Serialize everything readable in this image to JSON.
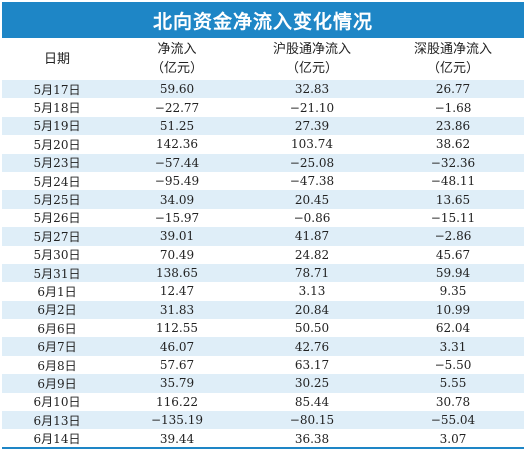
{
  "title": "北向资金净流入变化情况",
  "headers": [
    {
      "line1": "日期",
      "line2": ""
    },
    {
      "line1": "净流入",
      "line2": "（亿元）"
    },
    {
      "line1": "沪股通净流入",
      "line2": "（亿元）"
    },
    {
      "line1": "深股通净流入",
      "line2": "（亿元）"
    }
  ],
  "rows": [
    [
      "5月17日",
      "59.60",
      "32.83",
      "26.77"
    ],
    [
      "5月18日",
      "−22.77",
      "−21.10",
      "−1.68"
    ],
    [
      "5月19日",
      "51.25",
      "27.39",
      "23.86"
    ],
    [
      "5月20日",
      "142.36",
      "103.74",
      "38.62"
    ],
    [
      "5月23日",
      "−57.44",
      "−25.08",
      "−32.36"
    ],
    [
      "5月24日",
      "−95.49",
      "−47.38",
      "−48.11"
    ],
    [
      "5月25日",
      "34.09",
      "20.45",
      "13.65"
    ],
    [
      "5月26日",
      "−15.97",
      "−0.86",
      "−15.11"
    ],
    [
      "5月27日",
      "39.01",
      "41.87",
      "−2.86"
    ],
    [
      "5月30日",
      "70.49",
      "24.82",
      "45.67"
    ],
    [
      "5月31日",
      "138.65",
      "78.71",
      "59.94"
    ],
    [
      "6月1日",
      "12.47",
      "3.13",
      "9.35"
    ],
    [
      "6月2日",
      "31.83",
      "20.84",
      "10.99"
    ],
    [
      "6月6日",
      "112.55",
      "50.50",
      "62.04"
    ],
    [
      "6月7日",
      "46.07",
      "42.76",
      "3.31"
    ],
    [
      "6月8日",
      "57.67",
      "63.17",
      "−5.50"
    ],
    [
      "6月9日",
      "35.79",
      "30.25",
      "5.55"
    ],
    [
      "6月10日",
      "116.22",
      "85.44",
      "30.78"
    ],
    [
      "6月13日",
      "−135.19",
      "−80.15",
      "−55.04"
    ],
    [
      "6月14日",
      "39.44",
      "36.38",
      "3.07"
    ]
  ],
  "colors": {
    "title_bg": "#1e86c6",
    "row_alt": "#dfeef8"
  }
}
